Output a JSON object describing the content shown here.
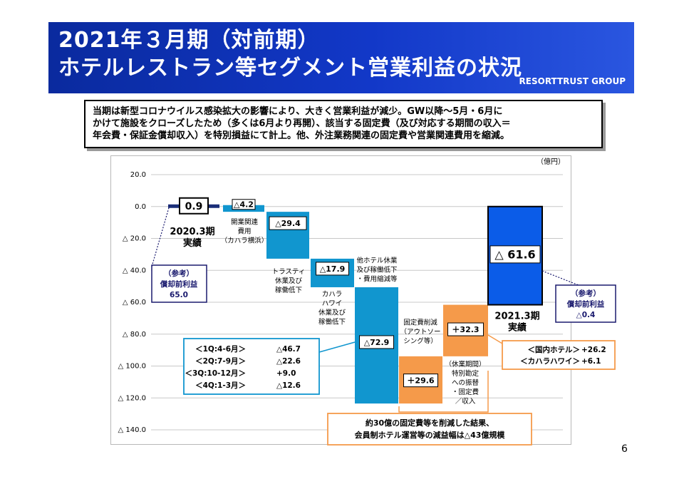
{
  "header": {
    "title_line1": "2021年３月期（対前期）",
    "title_line2": "ホテルレストラン等セグメント営業利益の状況",
    "brand": "RESORTTRUST GROUP"
  },
  "summary": {
    "lines": [
      "当期は新型コロナウイルス感染拡大の影響により、大きく営業利益が減少。GW以降～5月・6月に",
      "かけて施設をクローズしたため（多くは6月より再開）、該当する固定費（及び対応する期間の収入＝",
      "年会費・保証金償却収入）を特別損益にて計上。他、外注業務関連の固定費や営業関連費用を縮減。"
    ]
  },
  "chart_data": {
    "type": "bar",
    "subtype": "waterfall",
    "unit": "（億円）",
    "ylim": [
      -140,
      20
    ],
    "yticks": [
      20,
      0,
      -20,
      -40,
      -60,
      -80,
      -100,
      -120,
      -140
    ],
    "ytick_labels": [
      "20.0",
      "0.0",
      "△ 20.0",
      "△ 40.0",
      "△ 60.0",
      "△ 80.0",
      "△ 100.0",
      "△ 120.0",
      "△ 140.0"
    ],
    "grid": true,
    "steps": [
      {
        "label": "0.9",
        "kind": "total",
        "start": 0,
        "end": 0.9,
        "color": "#1a2e78"
      },
      {
        "label": "△4.2",
        "kind": "delta",
        "start": 0.9,
        "end": -3.3,
        "color": "#1196cf"
      },
      {
        "label": "△29.4",
        "kind": "delta",
        "start": -3.3,
        "end": -32.7,
        "color": "#1196cf"
      },
      {
        "label": "△17.9",
        "kind": "delta",
        "start": -32.7,
        "end": -50.6,
        "color": "#1196cf"
      },
      {
        "label": "△72.9",
        "kind": "delta",
        "start": -50.6,
        "end": -123.5,
        "color": "#1196cf"
      },
      {
        "label": "＋29.6",
        "kind": "delta",
        "start": -123.5,
        "end": -93.9,
        "color": "#f59a4a"
      },
      {
        "label": "＋32.3",
        "kind": "delta",
        "start": -93.9,
        "end": -61.6,
        "color": "#f59a4a"
      },
      {
        "label": "△ 61.6",
        "kind": "total",
        "start": 0,
        "end": -61.6,
        "color": "#0b5ce8"
      }
    ],
    "category_notes": [
      {
        "lines": [
          "2020.3期",
          "実績"
        ]
      },
      {
        "lines": [
          "開業関連",
          "費用",
          "（カハラ横浜）"
        ]
      },
      {
        "lines": [
          "トラスティ",
          "休業及び",
          "稼働低下"
        ]
      },
      {
        "lines": [
          "カハラ",
          "ハワイ",
          "休業及び",
          "稼働低下"
        ]
      },
      {
        "lines": [
          "他ホテル休業",
          "及び稼働低下",
          "・費用縮減等"
        ]
      },
      {
        "lines": [
          "（休業期間）",
          "特別勘定",
          "への振替",
          "・固定費",
          "／収入"
        ]
      },
      {
        "lines": [
          "固定費削減",
          "（アウトソー",
          "シング等）"
        ]
      },
      {
        "lines": [
          "2021.3期",
          "実績"
        ]
      }
    ],
    "annotations": {
      "ref_left": [
        "（参考）",
        "償却前利益",
        "65.0"
      ],
      "ref_right": [
        "（参考）",
        "償却前利益",
        "△0.4"
      ],
      "quarters": [
        {
          "period": "＜1Q:4-6月＞",
          "value": "△46.7"
        },
        {
          "period": "＜2Q:7-9月＞",
          "value": "△22.6"
        },
        {
          "period": "＜3Q:10-12月＞",
          "value": "+9.0"
        },
        {
          "period": "＜4Q:1-3月＞",
          "value": "△12.6"
        }
      ],
      "breakdown": [
        {
          "name": "＜国内ホテル＞",
          "value": "+26.2"
        },
        {
          "name": "＜カハラハワイ＞",
          "value": "+6.1"
        }
      ],
      "conclusion": [
        "約30億の固定費等を削減した結果、",
        "会員制ホテル運営等の減益幅は△43億規模"
      ]
    }
  },
  "page_number": "6"
}
